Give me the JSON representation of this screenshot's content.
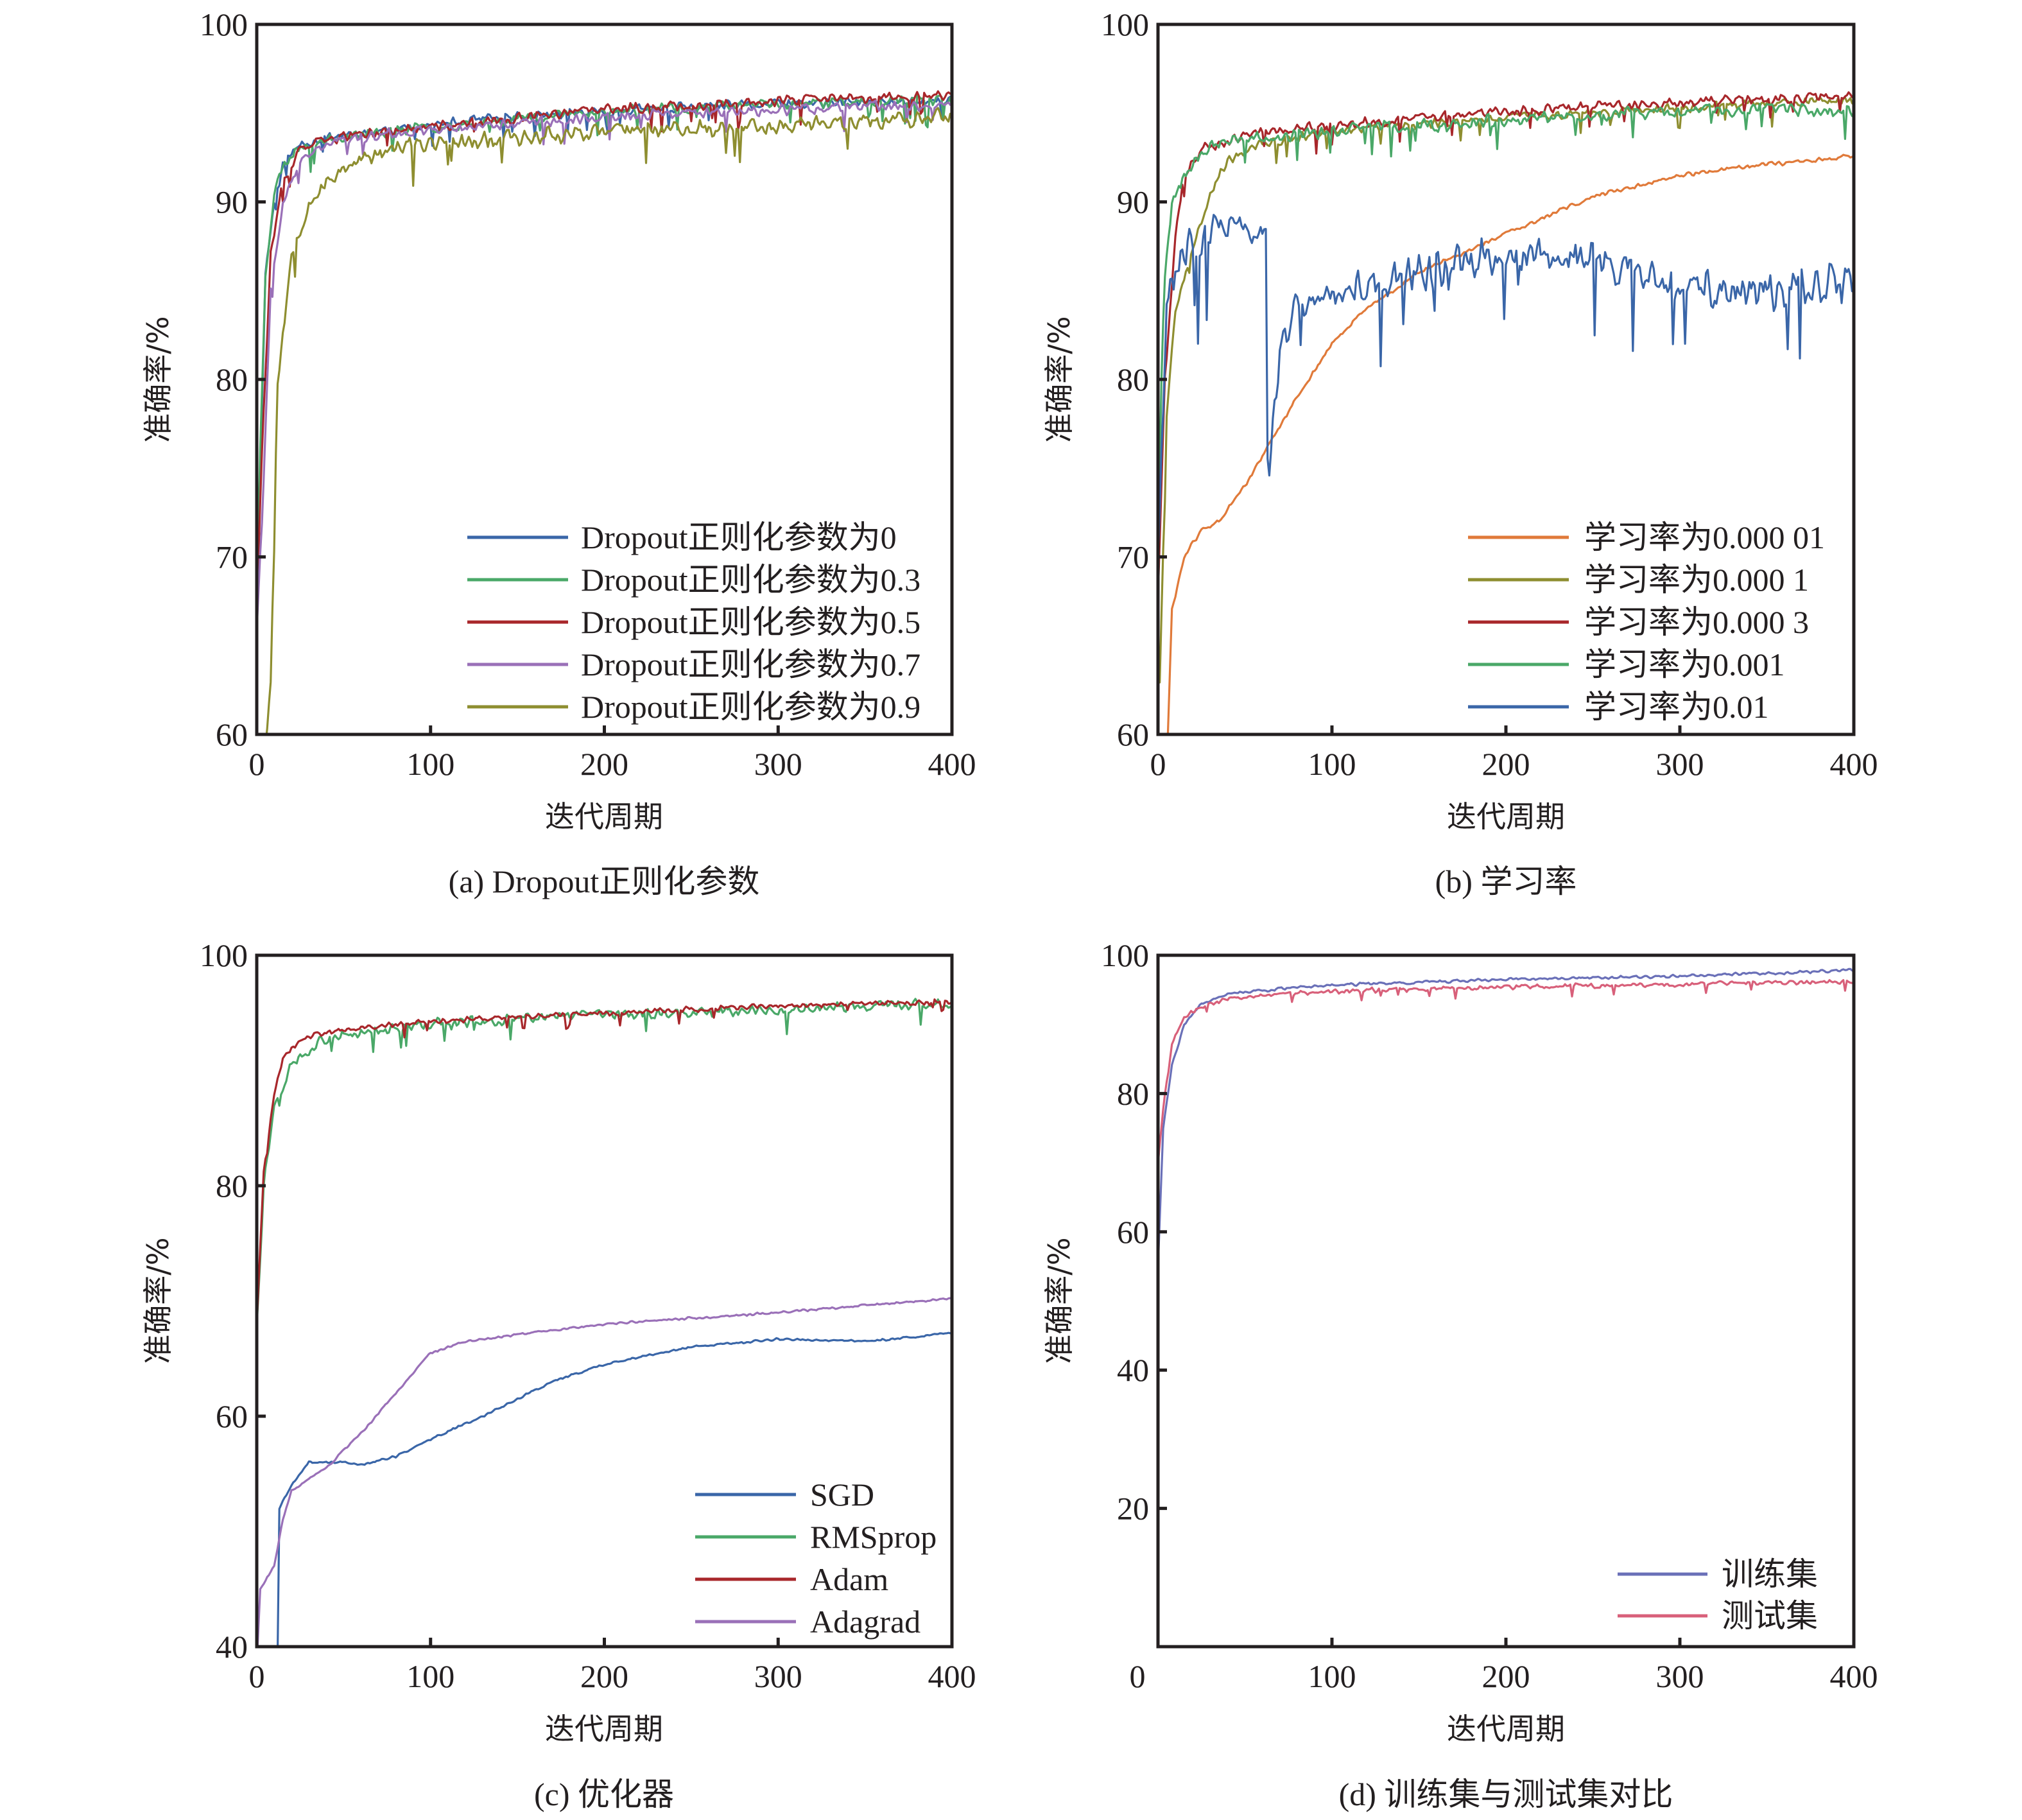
{
  "chart_data": [
    {
      "id": "a",
      "type": "line",
      "caption": "(a) Dropout正则化参数",
      "xlabel": "迭代周期",
      "ylabel": "准确率/%",
      "xlim": [
        0,
        400
      ],
      "ylim": [
        60,
        100
      ],
      "xticks": [
        0,
        100,
        200,
        300,
        400
      ],
      "xtick_labels": [
        "0",
        "100",
        "200",
        "300",
        "400"
      ],
      "yticks": [
        60,
        70,
        80,
        90,
        100
      ],
      "ytick_labels": [
        "60",
        "70",
        "80",
        "90",
        "100"
      ],
      "grid": false,
      "legend_position": "bottom-right",
      "series": [
        {
          "name": "Dropout正则化参数为0",
          "color": "#3a66a8",
          "noise": 0.35,
          "seed": 11,
          "points": [
            [
              0,
              66
            ],
            [
              2,
              75
            ],
            [
              5,
              86
            ],
            [
              10,
              90
            ],
            [
              15,
              92
            ],
            [
              25,
              93.3
            ],
            [
              50,
              93.8
            ],
            [
              100,
              94.3
            ],
            [
              150,
              94.8
            ],
            [
              200,
              95.1
            ],
            [
              300,
              95.5
            ],
            [
              400,
              95.7
            ]
          ]
        },
        {
          "name": "Dropout正则化参数为0.3",
          "color": "#4aa868",
          "noise": 0.35,
          "seed": 23,
          "points": [
            [
              0,
              67
            ],
            [
              2,
              76
            ],
            [
              5,
              86
            ],
            [
              10,
              90.5
            ],
            [
              15,
              92
            ],
            [
              25,
              93.2
            ],
            [
              50,
              93.7
            ],
            [
              100,
              94.2
            ],
            [
              150,
              94.7
            ],
            [
              200,
              95.1
            ],
            [
              300,
              95.5
            ],
            [
              400,
              95.8
            ]
          ]
        },
        {
          "name": "Dropout正则化参数为0.5",
          "color": "#a8272b",
          "noise": 0.35,
          "seed": 37,
          "points": [
            [
              0,
              68
            ],
            [
              3,
              76
            ],
            [
              8,
              87
            ],
            [
              15,
              91
            ],
            [
              25,
              93
            ],
            [
              50,
              93.7
            ],
            [
              100,
              94.2
            ],
            [
              200,
              95.2
            ],
            [
              300,
              95.7
            ],
            [
              400,
              96
            ]
          ]
        },
        {
          "name": "Dropout正则化参数为0.7",
          "color": "#9a70b8",
          "noise": 0.35,
          "seed": 41,
          "points": [
            [
              0,
              66
            ],
            [
              3,
              72
            ],
            [
              8,
              85
            ],
            [
              15,
              90
            ],
            [
              25,
              92.2
            ],
            [
              40,
              93.4
            ],
            [
              100,
              94.1
            ],
            [
              200,
              94.8
            ],
            [
              300,
              95.2
            ],
            [
              400,
              95.5
            ]
          ]
        },
        {
          "name": "Dropout正则化参数为0.9",
          "color": "#8e8e30",
          "noise": 0.55,
          "seed": 53,
          "points": [
            [
              5,
              59.5
            ],
            [
              8,
              63
            ],
            [
              12,
              80
            ],
            [
              20,
              87
            ],
            [
              30,
              90
            ],
            [
              50,
              92
            ],
            [
              80,
              93
            ],
            [
              100,
              93.3
            ],
            [
              200,
              94
            ],
            [
              300,
              94.3
            ],
            [
              400,
              94.8
            ]
          ]
        }
      ]
    },
    {
      "id": "b",
      "type": "line",
      "caption": "(b) 学习率",
      "xlabel": "迭代周期",
      "ylabel": "准确率/%",
      "xlim": [
        0,
        400
      ],
      "ylim": [
        60,
        100
      ],
      "xticks": [
        0,
        100,
        200,
        300,
        400
      ],
      "xtick_labels": [
        "0",
        "100",
        "200",
        "300",
        "400"
      ],
      "yticks": [
        60,
        70,
        80,
        90,
        100
      ],
      "ytick_labels": [
        "60",
        "70",
        "80",
        "90",
        "100"
      ],
      "grid": false,
      "legend_position": "bottom-right",
      "series": [
        {
          "name": "学习率为0.000 01",
          "color": "#e07a3a",
          "noise": 0.15,
          "seed": 61,
          "points": [
            [
              5,
              58
            ],
            [
              8,
              67
            ],
            [
              15,
              70
            ],
            [
              25,
              71.5
            ],
            [
              35,
              72
            ],
            [
              50,
              74
            ],
            [
              65,
              76.5
            ],
            [
              80,
              79
            ],
            [
              100,
              82
            ],
            [
              120,
              84
            ],
            [
              150,
              86
            ],
            [
              200,
              88.2
            ],
            [
              250,
              90.3
            ],
            [
              300,
              91.5
            ],
            [
              350,
              92.1
            ],
            [
              400,
              92.6
            ]
          ]
        },
        {
          "name": "学习率为0.000 1",
          "color": "#8e8e30",
          "noise": 0.3,
          "seed": 67,
          "points": [
            [
              1,
              63
            ],
            [
              5,
              78
            ],
            [
              10,
              84
            ],
            [
              20,
              87.5
            ],
            [
              30,
              90.5
            ],
            [
              40,
              92.3
            ],
            [
              60,
              93.3
            ],
            [
              100,
              94
            ],
            [
              200,
              94.8
            ],
            [
              300,
              95.3
            ],
            [
              400,
              95.7
            ]
          ]
        },
        {
          "name": "学习率为0.000 3",
          "color": "#a8272b",
          "noise": 0.35,
          "seed": 71,
          "points": [
            [
              0,
              68
            ],
            [
              4,
              80
            ],
            [
              10,
              88
            ],
            [
              15,
              91.5
            ],
            [
              25,
              93
            ],
            [
              50,
              93.8
            ],
            [
              100,
              94.3
            ],
            [
              200,
              95.1
            ],
            [
              300,
              95.6
            ],
            [
              400,
              96
            ]
          ]
        },
        {
          "name": "学习率为0.001",
          "color": "#4aa868",
          "noise": 0.45,
          "seed": 79,
          "points": [
            [
              0,
              70
            ],
            [
              3,
              85
            ],
            [
              8,
              90
            ],
            [
              15,
              91.5
            ],
            [
              25,
              93
            ],
            [
              50,
              93.5
            ],
            [
              100,
              94
            ],
            [
              200,
              94.6
            ],
            [
              300,
              95.1
            ],
            [
              400,
              95.2
            ]
          ]
        },
        {
          "name": "学习率为0.01",
          "color": "#3a66a8",
          "noise": 1.3,
          "seed": 83,
          "points": [
            [
              0,
              70
            ],
            [
              5,
              84
            ],
            [
              10,
              86
            ],
            [
              20,
              88
            ],
            [
              40,
              88.5
            ],
            [
              62,
              88.5
            ],
            [
              63,
              76
            ],
            [
              64,
              74.5
            ],
            [
              70,
              82
            ],
            [
              80,
              84
            ],
            [
              100,
              85
            ],
            [
              150,
              86
            ],
            [
              200,
              87
            ],
            [
              250,
              87
            ],
            [
              300,
              85
            ],
            [
              350,
              85
            ],
            [
              400,
              85.5
            ]
          ]
        }
      ]
    },
    {
      "id": "c",
      "type": "line",
      "caption": "(c) 优化器",
      "xlabel": "迭代周期",
      "ylabel": "准确率/%",
      "xlim": [
        0,
        400
      ],
      "ylim": [
        40,
        100
      ],
      "xticks": [
        0,
        100,
        200,
        300,
        400
      ],
      "xtick_labels": [
        "0",
        "100",
        "200",
        "300",
        "400"
      ],
      "yticks": [
        40,
        60,
        80,
        100
      ],
      "ytick_labels": [
        "40",
        "60",
        "80",
        "100"
      ],
      "grid": false,
      "legend_position": "bottom-right",
      "series": [
        {
          "name": "SGD",
          "color": "#3a66a8",
          "noise": 0.12,
          "seed": 89,
          "points": [
            [
              12,
              39.5
            ],
            [
              13,
              52
            ],
            [
              20,
              54
            ],
            [
              30,
              56
            ],
            [
              50,
              56
            ],
            [
              60,
              55.8
            ],
            [
              80,
              56.5
            ],
            [
              100,
              58
            ],
            [
              130,
              60
            ],
            [
              170,
              63
            ],
            [
              200,
              64.5
            ],
            [
              250,
              66
            ],
            [
              300,
              66.7
            ],
            [
              350,
              66.5
            ],
            [
              400,
              67.2
            ]
          ]
        },
        {
          "name": "RMSprop",
          "color": "#4aa868",
          "noise": 0.55,
          "seed": 97,
          "points": [
            [
              0,
              68
            ],
            [
              4,
              80
            ],
            [
              10,
              87
            ],
            [
              20,
              90.5
            ],
            [
              35,
              92.5
            ],
            [
              60,
              93.3
            ],
            [
              100,
              94
            ],
            [
              200,
              94.8
            ],
            [
              300,
              95.3
            ],
            [
              400,
              95.8
            ]
          ]
        },
        {
          "name": "Adam",
          "color": "#a8272b",
          "noise": 0.3,
          "seed": 101,
          "points": [
            [
              0,
              68
            ],
            [
              4,
              81
            ],
            [
              10,
              88
            ],
            [
              15,
              91
            ],
            [
              25,
              92.8
            ],
            [
              50,
              93.5
            ],
            [
              100,
              94.3
            ],
            [
              200,
              95
            ],
            [
              300,
              95.6
            ],
            [
              400,
              96
            ]
          ]
        },
        {
          "name": "Adagrad",
          "color": "#9a70b8",
          "noise": 0.12,
          "seed": 103,
          "points": [
            [
              0,
              38.5
            ],
            [
              2,
              45
            ],
            [
              10,
              47
            ],
            [
              15,
              51
            ],
            [
              20,
              53.5
            ],
            [
              40,
              55.5
            ],
            [
              60,
              58.5
            ],
            [
              80,
              62
            ],
            [
              100,
              65.5
            ],
            [
              120,
              66.5
            ],
            [
              200,
              68
            ],
            [
              300,
              69
            ],
            [
              400,
              70.2
            ]
          ]
        }
      ]
    },
    {
      "id": "d",
      "type": "line",
      "caption": "(d) 训练集与测试集对比",
      "xlabel": "迭代周期",
      "ylabel": "准确率/%",
      "xlim": [
        0,
        400
      ],
      "ylim": [
        0,
        100
      ],
      "xticks": [
        0,
        100,
        200,
        300,
        400
      ],
      "xtick_labels": [
        "0",
        "100",
        "200",
        "300",
        "400"
      ],
      "yticks": [
        20,
        40,
        60,
        80,
        100
      ],
      "ytick_labels": [
        "20",
        "40",
        "60",
        "80",
        "100"
      ],
      "grid": false,
      "legend_position": "bottom-right",
      "series": [
        {
          "name": "训练集",
          "color": "#6a70b8",
          "noise": 0.25,
          "seed": 107,
          "points": [
            [
              0,
              55
            ],
            [
              3,
              75
            ],
            [
              8,
              84
            ],
            [
              15,
              90
            ],
            [
              25,
              93
            ],
            [
              40,
              94.5
            ],
            [
              100,
              95.7
            ],
            [
              200,
              96.5
            ],
            [
              300,
              97
            ],
            [
              400,
              97.8
            ]
          ]
        },
        {
          "name": "测试集",
          "color": "#d8607a",
          "noise": 0.4,
          "seed": 109,
          "points": [
            [
              0,
              70
            ],
            [
              3,
              78
            ],
            [
              8,
              87
            ],
            [
              15,
              91
            ],
            [
              25,
              92.5
            ],
            [
              40,
              93.8
            ],
            [
              100,
              94.8
            ],
            [
              200,
              95.4
            ],
            [
              300,
              95.8
            ],
            [
              400,
              96.2
            ]
          ]
        }
      ]
    }
  ]
}
